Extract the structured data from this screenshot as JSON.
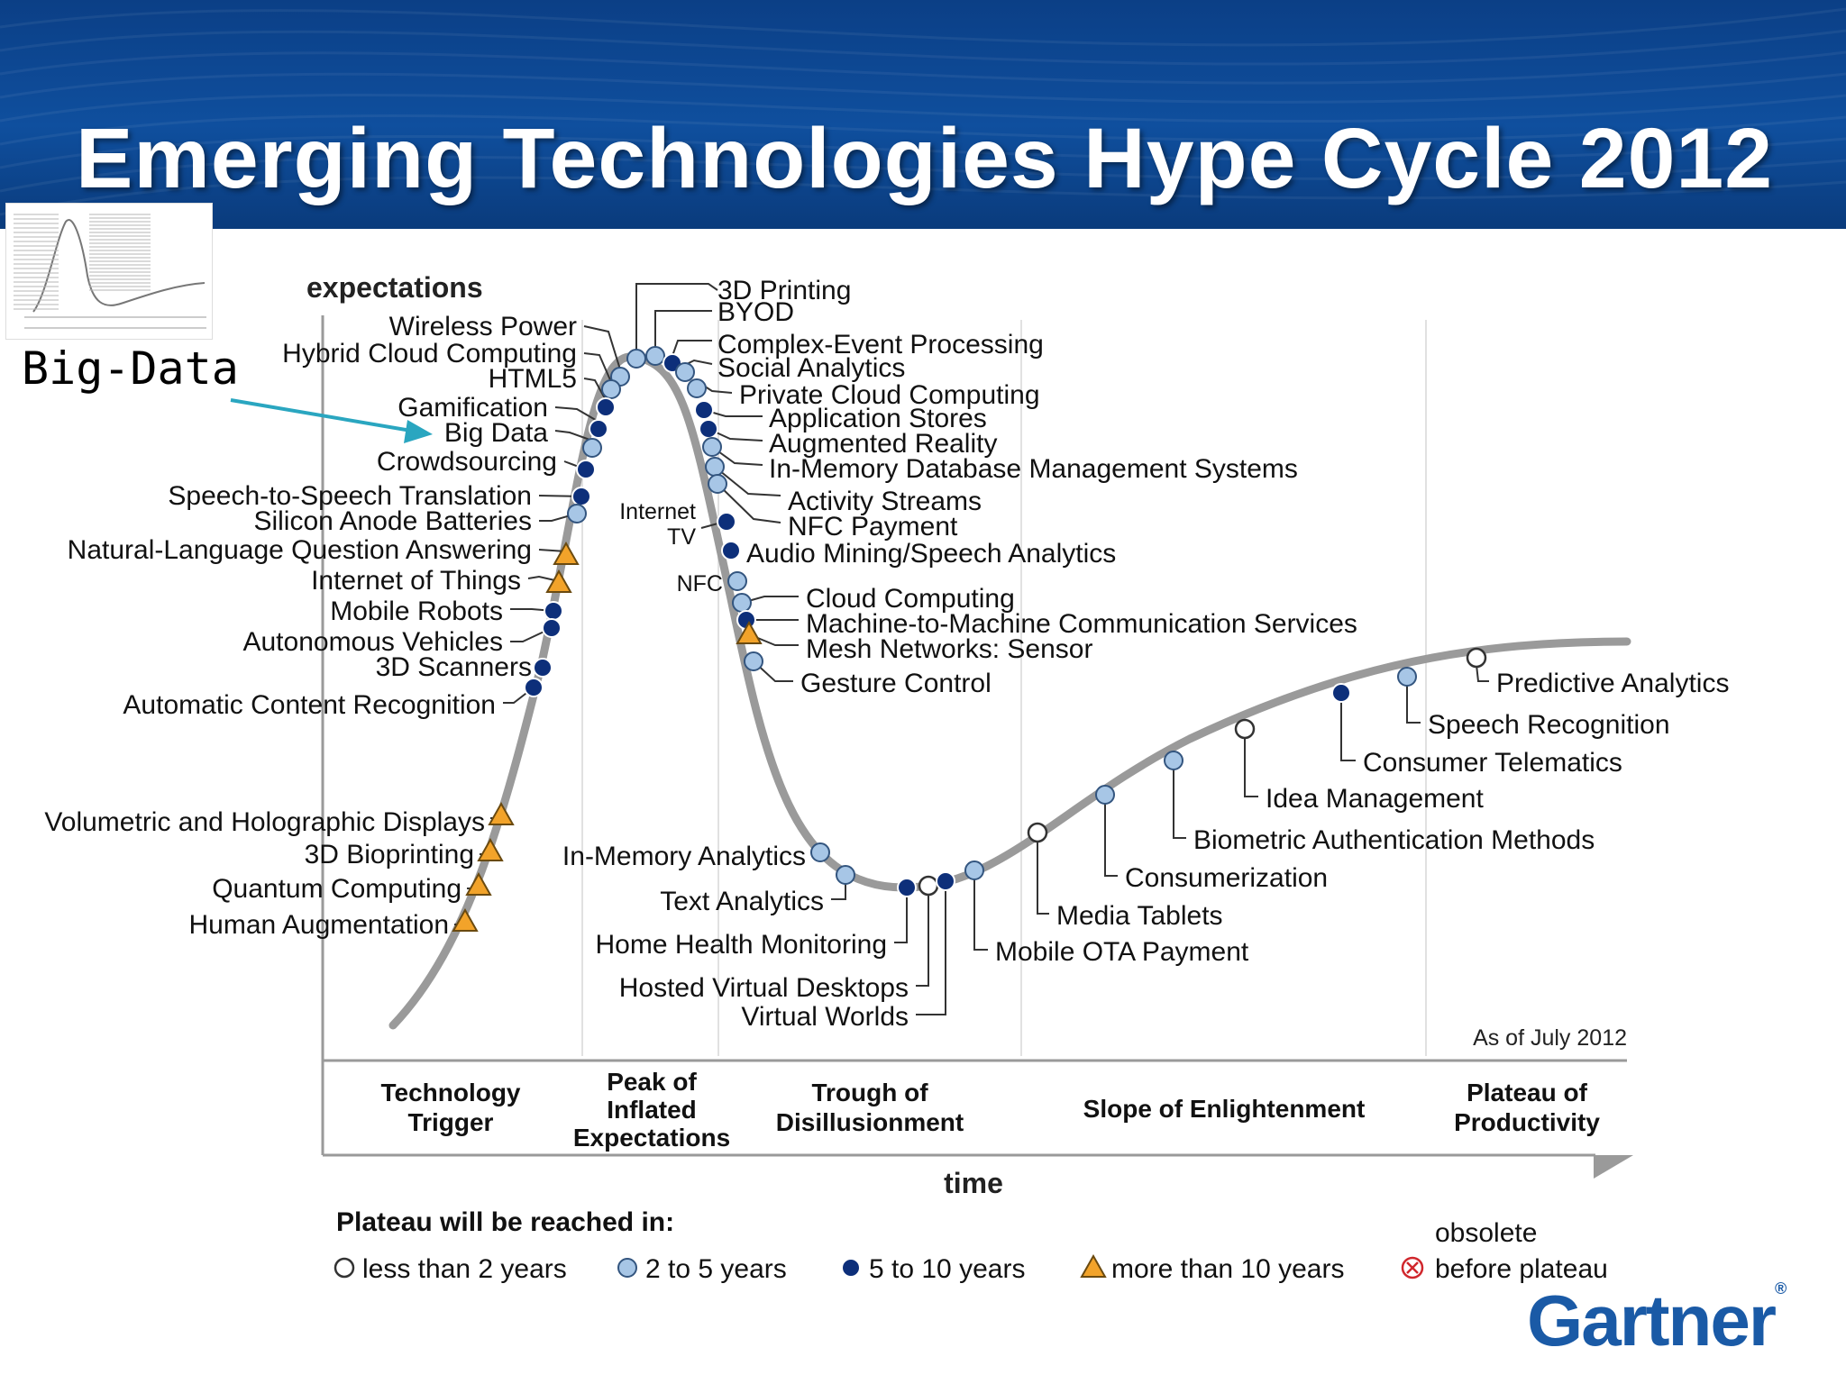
{
  "slide": {
    "title": "Emerging Technologies Hype Cycle 2012",
    "callout": "Big-Data",
    "logo": "Gartner",
    "logo_mark": "®",
    "colors": {
      "banner": "#0f4f9e",
      "curve": "#9a9a9a",
      "dark_dot": "#0d2f7a",
      "light_dot": "#a7c6e6",
      "triangle": "#f2a32a",
      "arrow": "#2aa6c0"
    }
  },
  "chart_data": {
    "type": "scatter",
    "y_axis_label": "expectations",
    "x_axis_label": "time",
    "as_of": "As of July 2012",
    "phases": [
      {
        "name": "Technology Trigger",
        "lines": [
          "Technology",
          "Trigger"
        ]
      },
      {
        "name": "Peak of Inflated Expectations",
        "lines": [
          "Peak of",
          "Inflated",
          "Expectations"
        ]
      },
      {
        "name": "Trough of Disillusionment",
        "lines": [
          "Trough of",
          "Disillusionment"
        ]
      },
      {
        "name": "Slope of Enlightenment",
        "lines": [
          "Slope of Enlightenment"
        ]
      },
      {
        "name": "Plateau of Productivity",
        "lines": [
          "Plateau of",
          "Productivity"
        ]
      }
    ],
    "legend": {
      "title": "Plateau will be reached in:",
      "items": [
        {
          "marker": "empty-circle",
          "label": "less than 2 years"
        },
        {
          "marker": "light-circle",
          "label": "2 to 5 years"
        },
        {
          "marker": "dark-circle",
          "label": "5 to 10 years"
        },
        {
          "marker": "triangle",
          "label": "more than 10 years"
        },
        {
          "marker": "obsolete",
          "label_line1": "obsolete",
          "label_line2": "before plateau"
        }
      ]
    },
    "technologies": [
      {
        "name": "3D Printing",
        "marker": "light-circle"
      },
      {
        "name": "BYOD",
        "marker": "light-circle"
      },
      {
        "name": "Complex-Event Processing",
        "marker": "dark-circle"
      },
      {
        "name": "Social Analytics",
        "marker": "light-circle"
      },
      {
        "name": "Private Cloud Computing",
        "marker": "light-circle"
      },
      {
        "name": "Application Stores",
        "marker": "dark-circle"
      },
      {
        "name": "Augmented Reality",
        "marker": "dark-circle"
      },
      {
        "name": "In-Memory Database Management Systems",
        "marker": "light-circle"
      },
      {
        "name": "Activity Streams",
        "marker": "light-circle"
      },
      {
        "name": "NFC Payment",
        "marker": "light-circle"
      },
      {
        "name": "Audio Mining/Speech Analytics",
        "marker": "dark-circle"
      },
      {
        "name": "Internet TV",
        "marker": "dark-circle"
      },
      {
        "name": "NFC",
        "marker": "light-circle"
      },
      {
        "name": "Cloud Computing",
        "marker": "light-circle"
      },
      {
        "name": "Machine-to-Machine Communication Services",
        "marker": "dark-circle"
      },
      {
        "name": "Mesh Networks: Sensor",
        "marker": "triangle"
      },
      {
        "name": "Gesture Control",
        "marker": "light-circle"
      },
      {
        "name": "Wireless Power",
        "marker": "light-circle"
      },
      {
        "name": "Hybrid Cloud Computing",
        "marker": "light-circle"
      },
      {
        "name": "HTML5",
        "marker": "dark-circle"
      },
      {
        "name": "Gamification",
        "marker": "dark-circle"
      },
      {
        "name": "Big Data",
        "marker": "light-circle"
      },
      {
        "name": "Crowdsourcing",
        "marker": "dark-circle"
      },
      {
        "name": "Speech-to-Speech Translation",
        "marker": "dark-circle"
      },
      {
        "name": "Silicon Anode Batteries",
        "marker": "light-circle"
      },
      {
        "name": "Natural-Language Question Answering",
        "marker": "triangle"
      },
      {
        "name": "Internet of Things",
        "marker": "triangle"
      },
      {
        "name": "Mobile Robots",
        "marker": "dark-circle"
      },
      {
        "name": "Autonomous Vehicles",
        "marker": "dark-circle"
      },
      {
        "name": "3D Scanners",
        "marker": "dark-circle"
      },
      {
        "name": "Automatic Content Recognition",
        "marker": "dark-circle"
      },
      {
        "name": "Volumetric and Holographic Displays",
        "marker": "triangle"
      },
      {
        "name": "3D Bioprinting",
        "marker": "triangle"
      },
      {
        "name": "Quantum Computing",
        "marker": "triangle"
      },
      {
        "name": "Human Augmentation",
        "marker": "triangle"
      },
      {
        "name": "In-Memory Analytics",
        "marker": "light-circle"
      },
      {
        "name": "Text Analytics",
        "marker": "light-circle"
      },
      {
        "name": "Home Health Monitoring",
        "marker": "dark-circle"
      },
      {
        "name": "Hosted Virtual Desktops",
        "marker": "empty-circle"
      },
      {
        "name": "Virtual Worlds",
        "marker": "dark-circle"
      },
      {
        "name": "Mobile OTA Payment",
        "marker": "light-circle"
      },
      {
        "name": "Media Tablets",
        "marker": "empty-circle"
      },
      {
        "name": "Consumerization",
        "marker": "light-circle"
      },
      {
        "name": "Biometric Authentication Methods",
        "marker": "light-circle"
      },
      {
        "name": "Idea Management",
        "marker": "empty-circle"
      },
      {
        "name": "Consumer Telematics",
        "marker": "dark-circle"
      },
      {
        "name": "Speech Recognition",
        "marker": "light-circle"
      },
      {
        "name": "Predictive Analytics",
        "marker": "empty-circle"
      }
    ]
  }
}
